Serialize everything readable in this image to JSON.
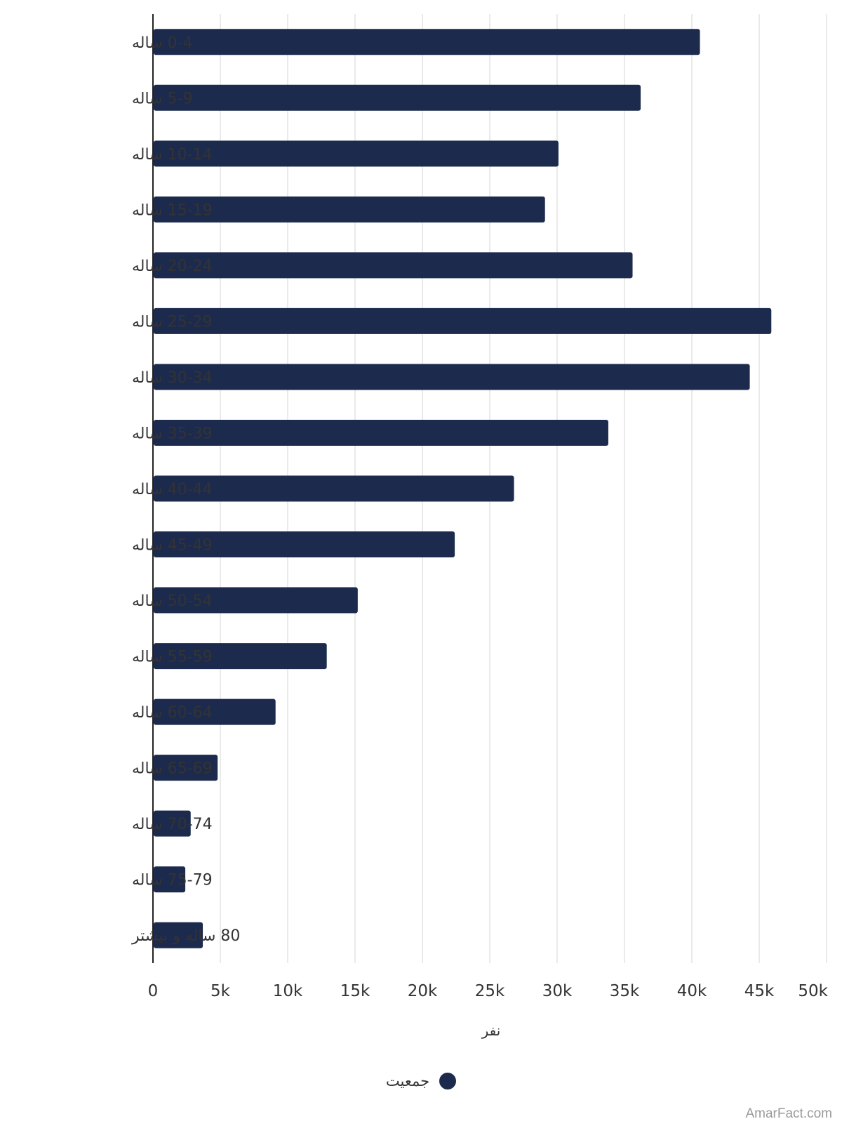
{
  "colors": {
    "bar": "#1c2a4d",
    "grid": "#e3e3e3",
    "axis": "#222222",
    "text": "#333333",
    "watermark": "#9a9a9a"
  },
  "chart_data": {
    "type": "bar",
    "orientation": "horizontal",
    "categories": [
      "0-4 ساله",
      "5-9 ساله",
      "10-14 ساله",
      "15-19 ساله",
      "20-24 ساله",
      "25-29 ساله",
      "30-34 ساله",
      "35-39 ساله",
      "40-44 ساله",
      "45-49 ساله",
      "50-54 ساله",
      "55-59 ساله",
      "60-64 ساله",
      "65-69 ساله",
      "70-74 ساله",
      "75-79 ساله",
      "80 ساله و بیشتر"
    ],
    "series": [
      {
        "name": "جمعیت",
        "values": [
          40600,
          36200,
          30100,
          29100,
          35600,
          45900,
          44300,
          33800,
          26800,
          22400,
          15200,
          12900,
          9100,
          4800,
          2800,
          2400,
          3700
        ]
      }
    ],
    "xlabel": "نفر",
    "xticks": [
      "0",
      "5k",
      "10k",
      "15k",
      "20k",
      "25k",
      "30k",
      "35k",
      "40k",
      "45k",
      "50k"
    ],
    "xlim": [
      0,
      50000
    ],
    "grid": true,
    "legend_position": "bottom"
  },
  "watermark": "AmarFact.com"
}
